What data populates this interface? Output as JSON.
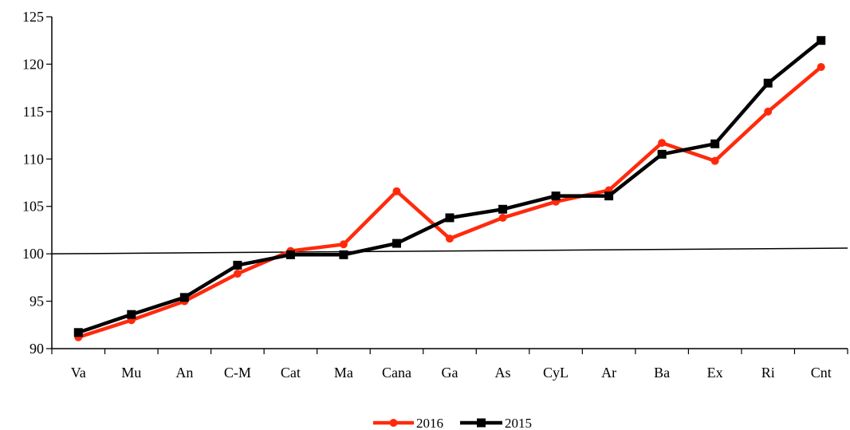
{
  "chart_data": {
    "type": "line",
    "title": "",
    "xlabel": "",
    "ylabel": "",
    "categories": [
      "Va",
      "Mu",
      "An",
      "C-M",
      "Cat",
      "Ma",
      "Cana",
      "Ga",
      "As",
      "CyL",
      "Ar",
      "Ba",
      "Ex",
      "Ri",
      "Cnt"
    ],
    "ylim": [
      90,
      125
    ],
    "yticks": [
      90,
      95,
      100,
      105,
      110,
      115,
      120,
      125
    ],
    "grid": false,
    "legend_position": "bottom-center",
    "reference_line": {
      "start": 100,
      "end": 100.6,
      "color": "#000000"
    },
    "series": [
      {
        "name": "2016",
        "color": "#ff2a0c",
        "marker": "circle",
        "values": [
          91.2,
          93.0,
          95.0,
          97.9,
          100.3,
          101.0,
          106.6,
          101.6,
          103.8,
          105.5,
          106.7,
          111.7,
          109.8,
          115.0,
          119.7
        ]
      },
      {
        "name": "2015",
        "color": "#000000",
        "marker": "square",
        "values": [
          91.7,
          93.6,
          95.4,
          98.8,
          99.9,
          99.9,
          101.1,
          103.8,
          104.7,
          106.1,
          106.1,
          110.5,
          111.6,
          118.0,
          122.5
        ]
      }
    ]
  }
}
